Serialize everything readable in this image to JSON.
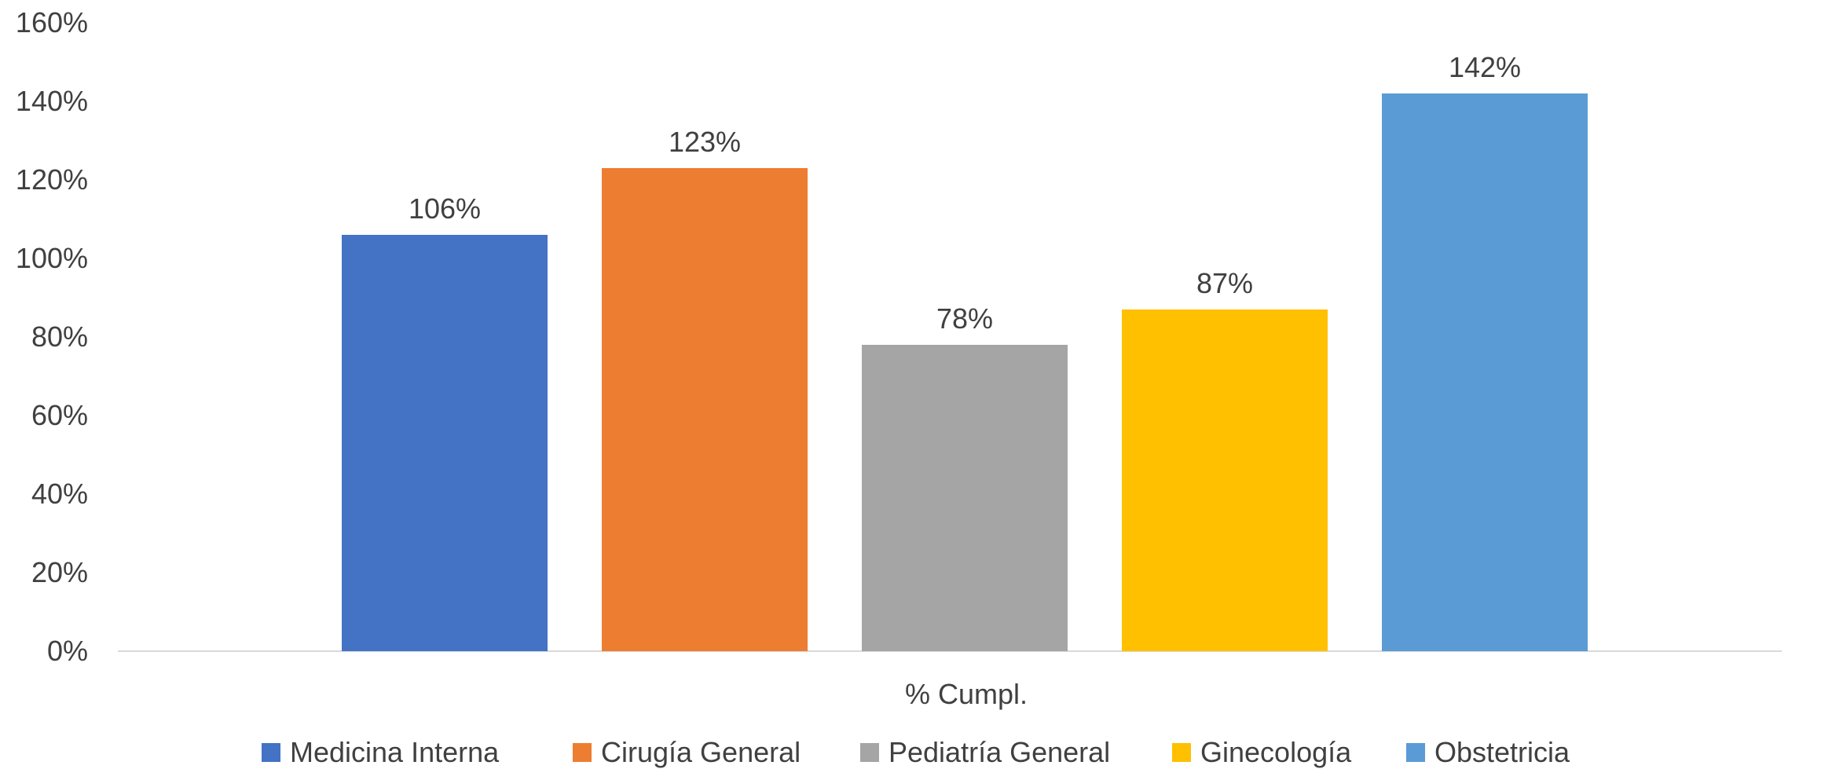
{
  "chart_data": {
    "type": "bar",
    "title": "",
    "xlabel": "",
    "ylabel": "",
    "category_label": "% Cumpl.",
    "ylim": [
      0,
      160
    ],
    "yticks": [
      0,
      20,
      40,
      60,
      80,
      100,
      120,
      140,
      160
    ],
    "ytick_labels": [
      "0%",
      "20%",
      "40%",
      "60%",
      "80%",
      "100%",
      "120%",
      "140%",
      "160%"
    ],
    "grid": false,
    "legend_position": "bottom",
    "series": [
      {
        "name": "Medicina Interna",
        "value": 106,
        "label": "106%",
        "color": "#4472C4"
      },
      {
        "name": "Cirugía General",
        "value": 123,
        "label": "123%",
        "color": "#ED7D31"
      },
      {
        "name": "Pediatría General",
        "value": 78,
        "label": "78%",
        "color": "#A5A5A5"
      },
      {
        "name": "Ginecología",
        "value": 87,
        "label": "87%",
        "color": "#FFC000"
      },
      {
        "name": "Obstetricia",
        "value": 142,
        "label": "142%",
        "color": "#5B9BD5"
      }
    ]
  }
}
